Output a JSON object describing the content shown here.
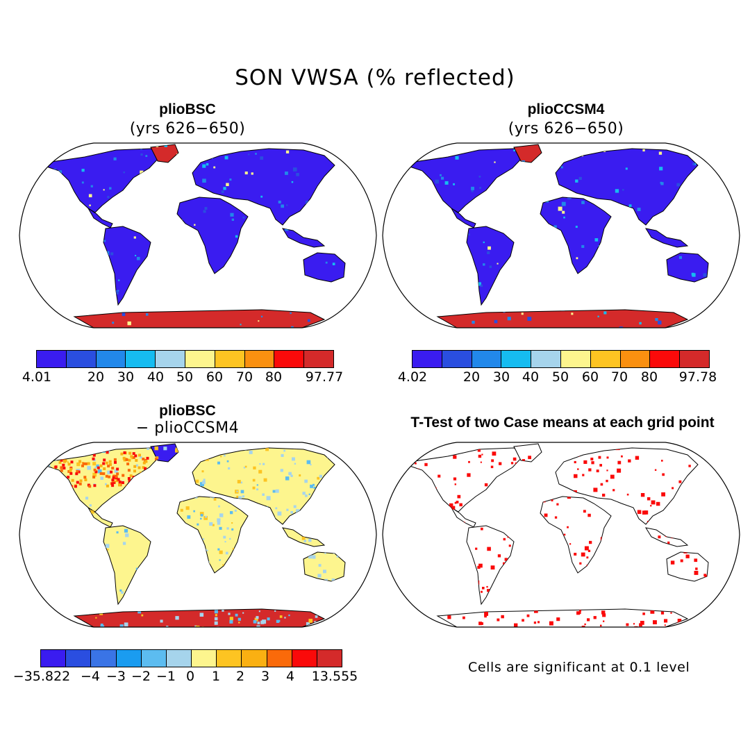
{
  "figure": {
    "title": "SON VWSA (% reflected)"
  },
  "panels": [
    {
      "title": "plioBSC",
      "subtitle": "(yrs 626−650)",
      "colorbar": {
        "colors": [
          "#3a1cf0",
          "#2a4ee0",
          "#2288ea",
          "#16bcf0",
          "#a6d4ec",
          "#fdf58e",
          "#fdc422",
          "#fa9010",
          "#fa0a0a",
          "#d42a2a"
        ],
        "ticks": [
          "4.01",
          "20",
          "30",
          "40",
          "50",
          "60",
          "70",
          "80",
          "97.77"
        ]
      }
    },
    {
      "title": "plioCCSM4",
      "subtitle": "(yrs 626−650)",
      "colorbar": {
        "colors": [
          "#3a1cf0",
          "#2a4ee0",
          "#2288ea",
          "#16bcf0",
          "#a6d4ec",
          "#fdf58e",
          "#fdc422",
          "#fa9010",
          "#fa0a0a",
          "#d42a2a"
        ],
        "ticks": [
          "4.02",
          "20",
          "30",
          "40",
          "50",
          "60",
          "70",
          "80",
          "97.78"
        ]
      }
    },
    {
      "title": "plioBSC",
      "subtitle": "− plioCCSM4",
      "colorbar": {
        "colors": [
          "#3a1cf0",
          "#2a4ee0",
          "#3a74e6",
          "#1a9cf0",
          "#5cbcf0",
          "#a6d4ec",
          "#fdf58e",
          "#fdc422",
          "#fab012",
          "#fa6a0a",
          "#fa0a0a",
          "#d42a2a"
        ],
        "ticks": [
          "−35.822",
          "−4",
          "−3",
          "−2",
          "−1",
          "0",
          "1",
          "2",
          "3",
          "4",
          "13.555"
        ]
      }
    },
    {
      "title": "T-Test of two Case means at each grid point",
      "note": "Cells are significant at 0.1 level"
    }
  ]
}
